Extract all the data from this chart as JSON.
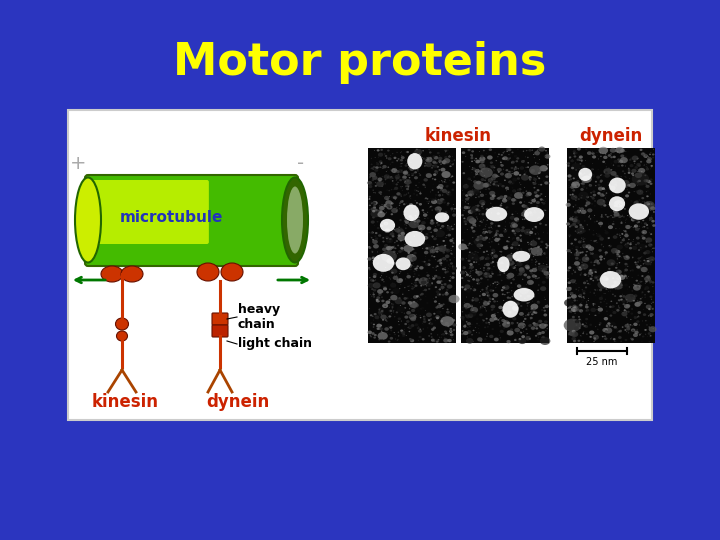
{
  "title": "Motor proteins",
  "title_color": "#FFFF00",
  "title_fontsize": 32,
  "bg_color": "#2B35BF",
  "panel_bg": "#FFFFFF",
  "microtubule_label": "microtubule",
  "microtubule_label_color": "#2233BB",
  "heavy_chain_label": "heavy\nchain",
  "light_chain_label": "light chain",
  "kinesin_label_diagram": "kinesin",
  "dynein_label_diagram": "dynein",
  "kinesin_label_em": "kinesin",
  "dynein_label_em": "dynein",
  "label_color_red": "#CC2200",
  "label_color_black": "#000000",
  "plus_minus_color": "#AAAAAA",
  "arrow_color": "#007700",
  "motor_color": "#CC3300",
  "tube_color_outer": "#228800",
  "tube_color_inner": "#CCEE00",
  "tube_highlight": "#EEFF44"
}
